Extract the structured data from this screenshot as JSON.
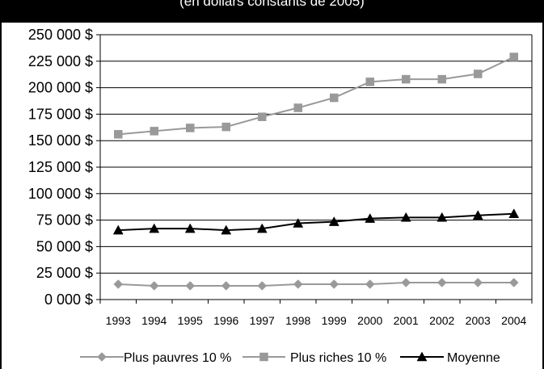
{
  "title": "(en dollars constants de 2005)",
  "chart_data": {
    "type": "line",
    "title": "(en dollars constants de 2005)",
    "xlabel": "",
    "ylabel": "",
    "categories": [
      "1993",
      "1994",
      "1995",
      "1996",
      "1997",
      "1998",
      "1999",
      "2000",
      "2001",
      "2002",
      "2003",
      "2004"
    ],
    "ylim": [
      0,
      250000
    ],
    "yticks": [
      "0 000 $",
      "25 000 $",
      "50 000 $",
      "75 000 $",
      "100 000 $",
      "125 000 $",
      "150 000 $",
      "175 000 $",
      "200 000 $",
      "225 000 $",
      "250 000 $"
    ],
    "grid": true,
    "legend_position": "bottom",
    "series": [
      {
        "name": "Plus pauvres 10 %",
        "color": "#999999",
        "marker": "diamond",
        "values": [
          14500,
          13000,
          13000,
          13000,
          13000,
          14500,
          14500,
          14500,
          16000,
          16000,
          16000,
          16000
        ]
      },
      {
        "name": "Plus riches 10 %",
        "color": "#999999",
        "marker": "square",
        "values": [
          156000,
          159000,
          162000,
          163000,
          172500,
          181000,
          190500,
          205500,
          208000,
          208000,
          213000,
          229000
        ]
      },
      {
        "name": "Moyenne",
        "color": "#000000",
        "marker": "triangle",
        "values": [
          65500,
          67000,
          67000,
          65500,
          67000,
          72000,
          73500,
          76500,
          77500,
          77500,
          79500,
          81000
        ]
      }
    ]
  }
}
